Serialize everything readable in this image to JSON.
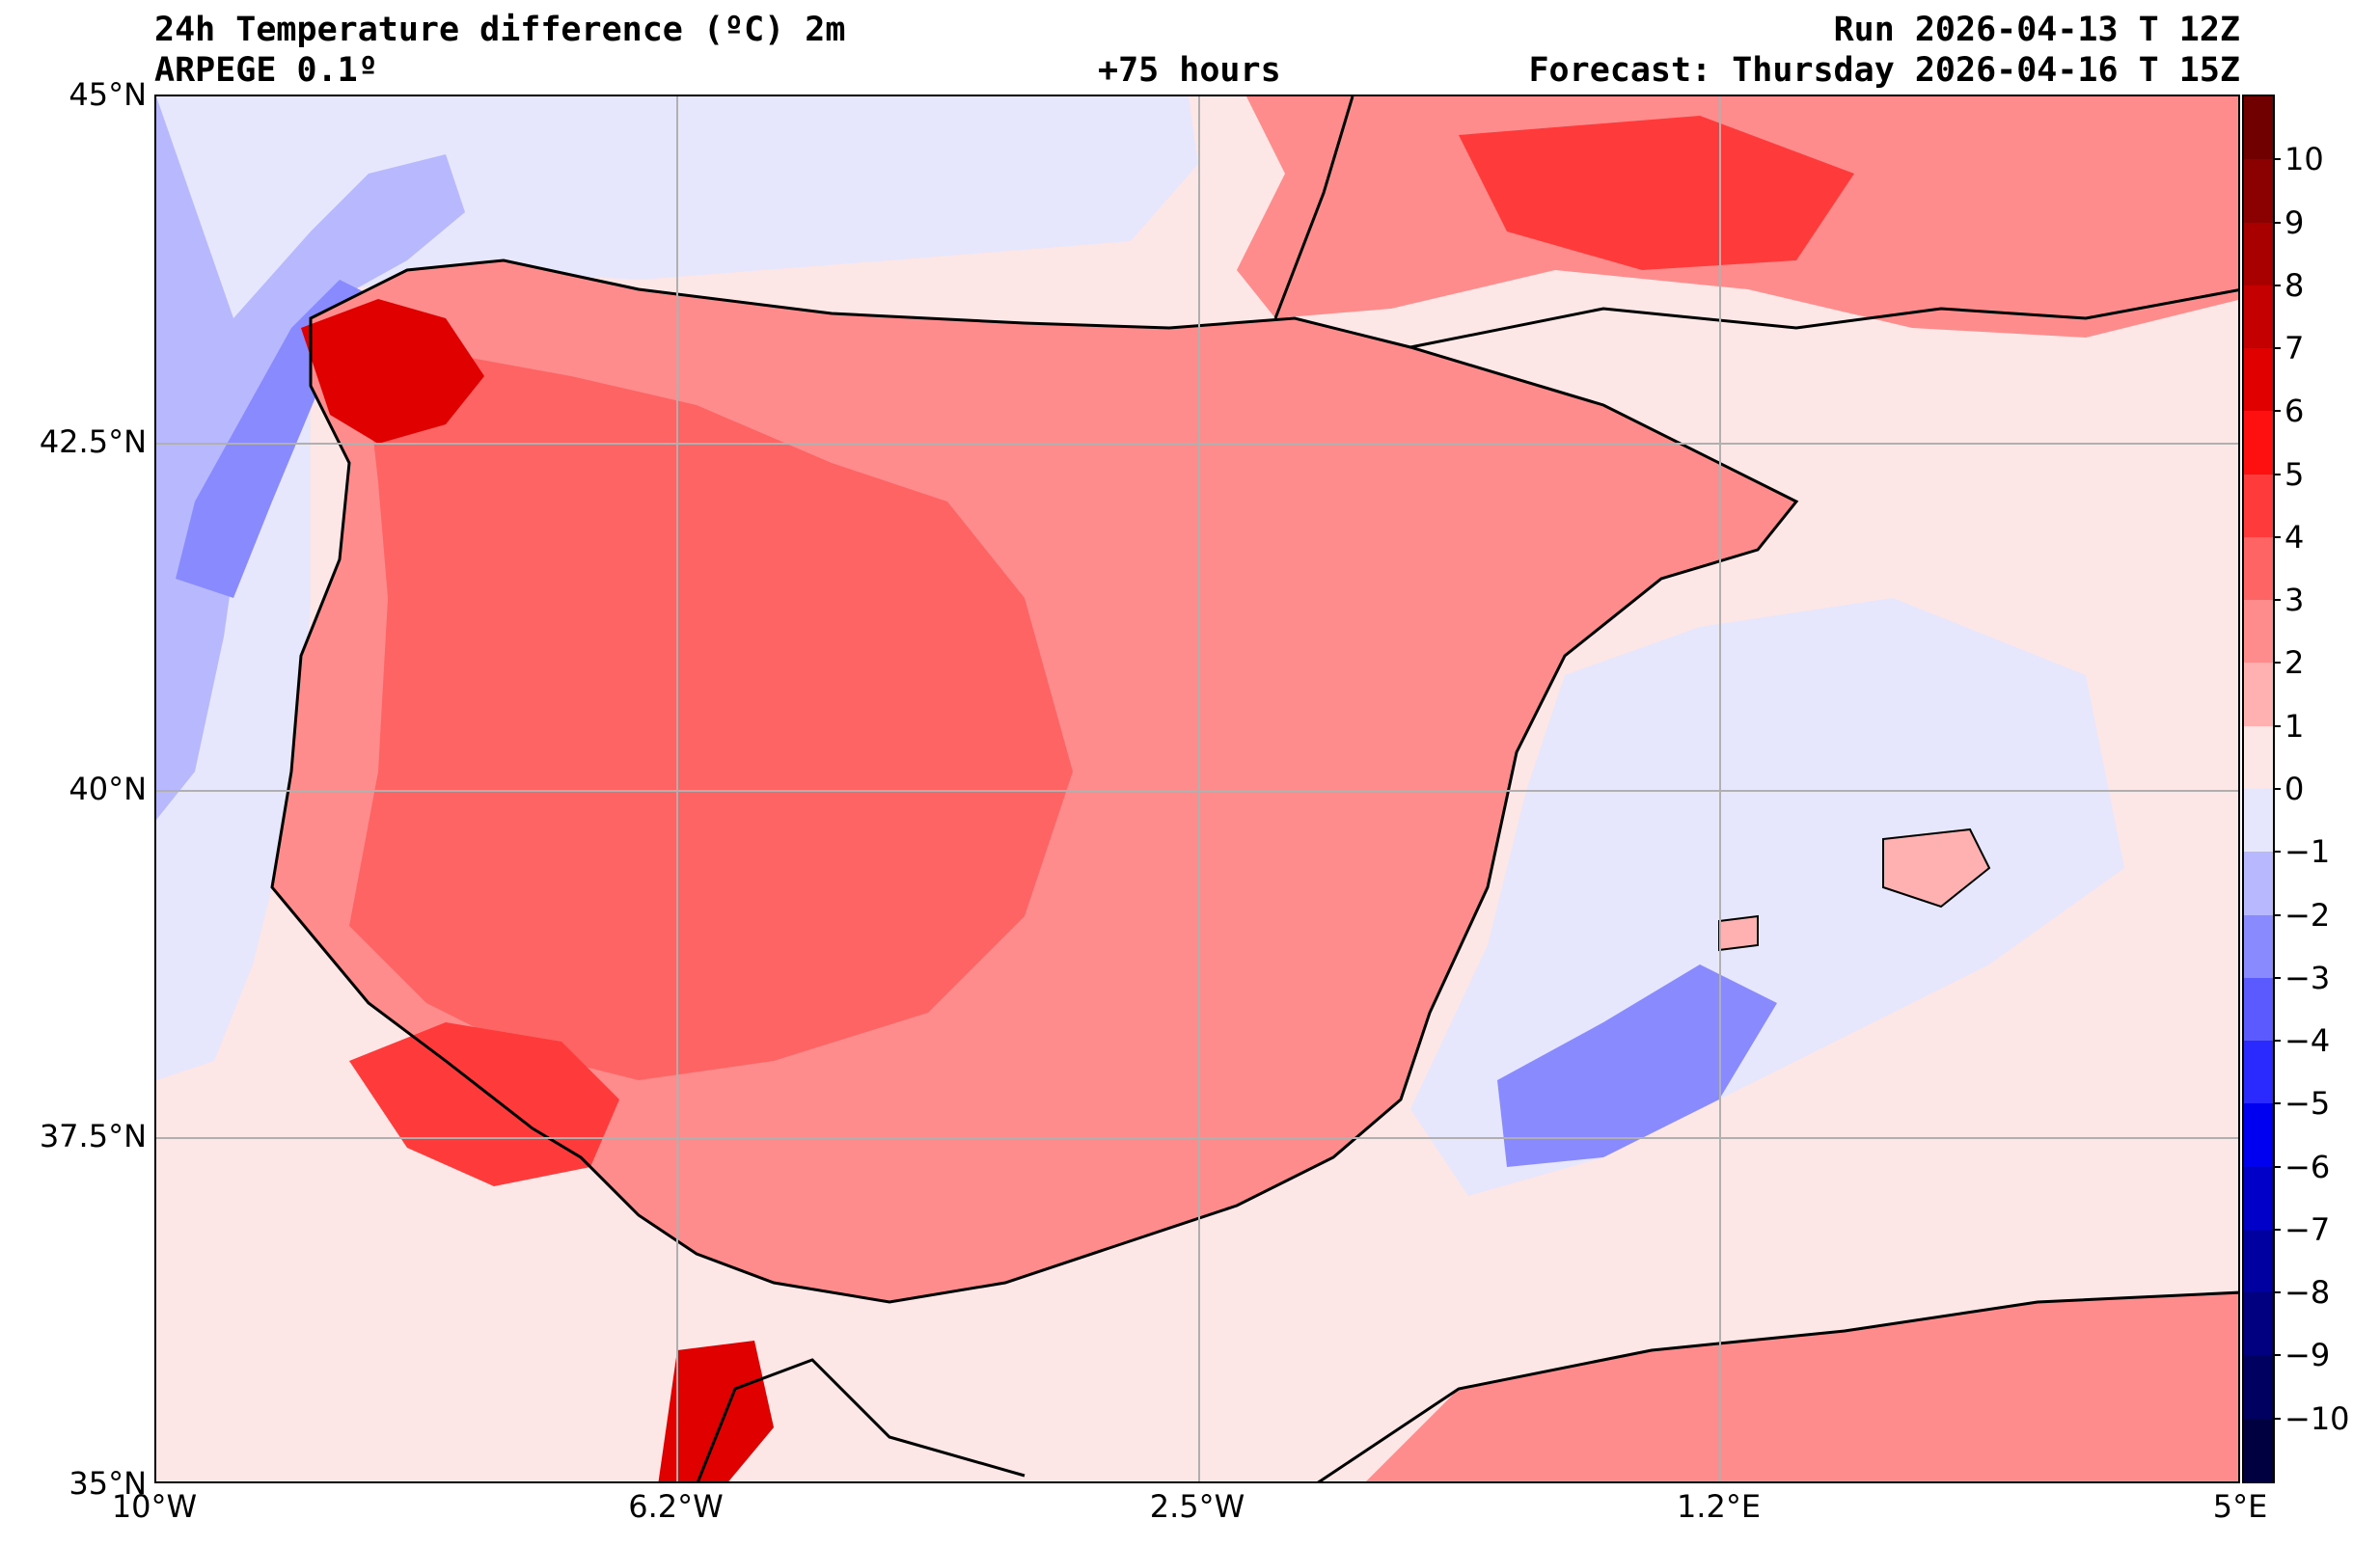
{
  "header": {
    "title": "24h Temperature difference (ºC) 2m",
    "model": "ARPEGE 0.1º",
    "lead_time": "+75 hours",
    "run": "Run 2026-04-13 T 12Z",
    "forecast": "Forecast: Thursday 2026-04-16 T 15Z"
  },
  "map": {
    "extent": {
      "lon_min": -10,
      "lon_max": 5,
      "lat_min": 35,
      "lat_max": 45
    },
    "lat_ticks": [
      {
        "value": 45,
        "label": "45°N"
      },
      {
        "value": 42.5,
        "label": "42.5°N"
      },
      {
        "value": 40,
        "label": "40°N"
      },
      {
        "value": 37.5,
        "label": "37.5°N"
      },
      {
        "value": 35,
        "label": "35°N"
      }
    ],
    "lon_ticks": [
      {
        "value": -10,
        "label": "10°W"
      },
      {
        "value": -6.25,
        "label": "6.2°W"
      },
      {
        "value": -2.5,
        "label": "2.5°W"
      },
      {
        "value": 1.25,
        "label": "1.2°E"
      },
      {
        "value": 5,
        "label": "5°E"
      }
    ],
    "colors": {
      "background": "#fde6e6",
      "grid": "#b0b0b0",
      "coast": "#000000"
    }
  },
  "colorbar": {
    "levels": [
      {
        "label": "10",
        "color": "#8b0000"
      },
      {
        "label": "9",
        "color": "#a80000"
      },
      {
        "label": "8",
        "color": "#c40000"
      },
      {
        "label": "7",
        "color": "#e00000"
      },
      {
        "label": "6",
        "color": "#ff1010"
      },
      {
        "label": "5",
        "color": "#ff3a3a"
      },
      {
        "label": "4",
        "color": "#ff6464"
      },
      {
        "label": "3",
        "color": "#ff8c8c"
      },
      {
        "label": "2",
        "color": "#ffb0b0"
      },
      {
        "label": "1",
        "color": "#fde6e6"
      },
      {
        "label": "0",
        "color": "#e6e6fd"
      },
      {
        "label": "−1",
        "color": "#b8b8ff"
      },
      {
        "label": "−2",
        "color": "#8a8aff"
      },
      {
        "label": "−3",
        "color": "#5a5aff"
      },
      {
        "label": "−4",
        "color": "#2a2aff"
      },
      {
        "label": "−5",
        "color": "#0000f0"
      },
      {
        "label": "−6",
        "color": "#0000c8"
      },
      {
        "label": "−7",
        "color": "#0000a0"
      },
      {
        "label": "−8",
        "color": "#000080"
      },
      {
        "label": "−9",
        "color": "#000060"
      },
      {
        "label": "−10",
        "color": "#000040"
      }
    ],
    "top_color": "#700000",
    "bottom_color": "#000030"
  }
}
